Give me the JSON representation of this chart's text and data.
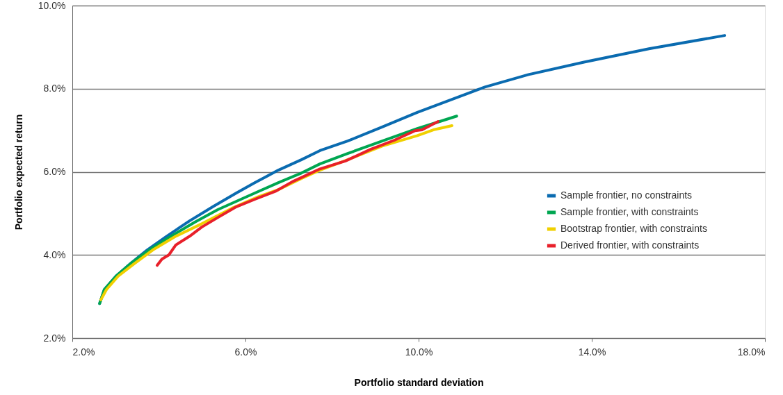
{
  "chart_data": {
    "type": "line",
    "xlabel": "Portfolio standard deviation",
    "ylabel": "Portfolio expected return",
    "xlim": [
      2,
      18
    ],
    "ylim": [
      2,
      10
    ],
    "xticks": [
      {
        "value": 2,
        "label": "2.0%"
      },
      {
        "value": 6,
        "label": "6.0%"
      },
      {
        "value": 10,
        "label": "10.0%"
      },
      {
        "value": 14,
        "label": "14.0%"
      },
      {
        "value": 18,
        "label": "18.0%"
      }
    ],
    "yticks": [
      {
        "value": 2,
        "label": "2.0%"
      },
      {
        "value": 4,
        "label": "4.0%"
      },
      {
        "value": 6,
        "label": "6.0%"
      },
      {
        "value": 8,
        "label": "8.0%"
      },
      {
        "value": 10,
        "label": "10.0%"
      }
    ],
    "grid": "y",
    "legend": "right",
    "marker": "none",
    "line_style": "solid",
    "series": [
      {
        "name": "Sample frontier, no constraints",
        "color": "#0a6bb0",
        "x": [
          2.63,
          2.74,
          3.01,
          3.35,
          3.73,
          4.18,
          4.71,
          5.26,
          5.79,
          6.22,
          6.76,
          7.29,
          7.72,
          8.36,
          9.16,
          9.97,
          11.53,
          12.54,
          13.82,
          15.32,
          17.07
        ],
        "values": [
          2.83,
          3.17,
          3.49,
          3.8,
          4.12,
          4.45,
          4.82,
          5.17,
          5.49,
          5.74,
          6.04,
          6.29,
          6.51,
          6.74,
          7.08,
          7.43,
          8.04,
          8.34,
          8.64,
          8.96,
          9.28
        ]
      },
      {
        "name": "Sample frontier, with constraints",
        "color": "#00a651",
        "x": [
          2.63,
          2.74,
          3.01,
          3.38,
          3.75,
          4.23,
          4.83,
          5.36,
          5.79,
          6.22,
          6.76,
          7.29,
          7.72,
          8.36,
          9.16,
          9.97,
          10.88
        ],
        "values": [
          2.83,
          3.17,
          3.49,
          3.82,
          4.1,
          4.42,
          4.79,
          5.09,
          5.29,
          5.49,
          5.74,
          5.97,
          6.19,
          6.44,
          6.74,
          7.04,
          7.34
        ]
      },
      {
        "name": "Bootstrap frontier, with constraints",
        "color": "#f0d000",
        "x": [
          2.66,
          2.79,
          3.06,
          3.43,
          3.86,
          4.39,
          4.99,
          5.68,
          6.32,
          6.76,
          7.29,
          7.72,
          8.36,
          9.16,
          9.97,
          10.34,
          10.77
        ],
        "values": [
          2.92,
          3.17,
          3.49,
          3.79,
          4.12,
          4.45,
          4.75,
          5.12,
          5.41,
          5.57,
          5.84,
          6.04,
          6.29,
          6.62,
          6.87,
          7.01,
          7.11
        ]
      },
      {
        "name": "Derived frontier, with constraints",
        "color": "#e8202a",
        "x": [
          3.96,
          4.07,
          4.23,
          4.39,
          4.71,
          4.99,
          5.36,
          5.79,
          6.22,
          6.71,
          7.08,
          7.72,
          8.31,
          8.89,
          9.44,
          9.92,
          10.08,
          10.45
        ],
        "values": [
          3.75,
          3.9,
          4.0,
          4.24,
          4.45,
          4.67,
          4.9,
          5.16,
          5.34,
          5.54,
          5.76,
          6.07,
          6.26,
          6.54,
          6.76,
          6.99,
          7.01,
          7.21
        ]
      }
    ]
  }
}
